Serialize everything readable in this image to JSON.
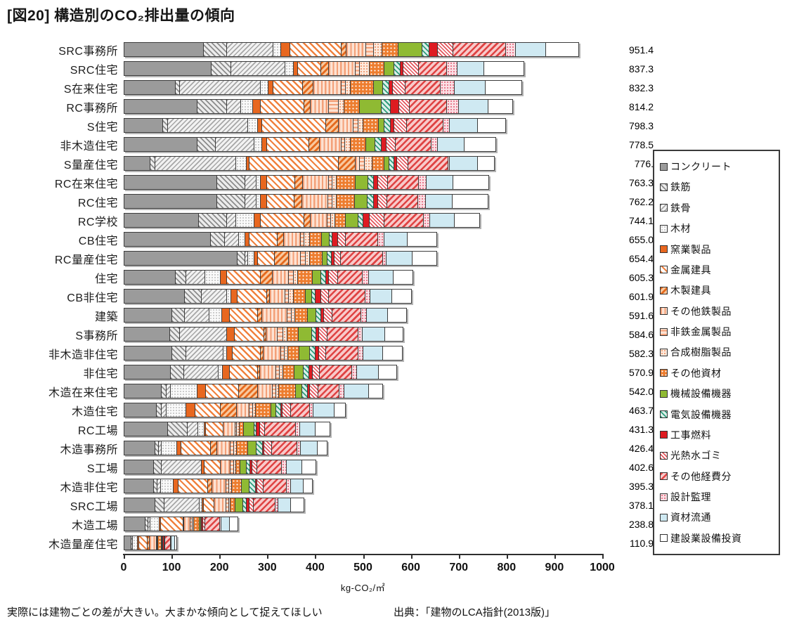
{
  "page": {
    "title": "[図20] 構造別のCO₂排出量の傾向",
    "footer_note": "実際には建物ごとの差が大きい。大まかな傾向として捉えてほしい",
    "source": "出典：「建物のLCA指針(2013版)」"
  },
  "chart_data": {
    "type": "bar",
    "stacked": true,
    "orientation": "horizontal",
    "title": "[図20] 構造別のCO₂排出量の傾向",
    "xlabel": "kg-CO₂/㎡",
    "xlim": [
      0,
      1000
    ],
    "xticks": [
      0,
      100,
      200,
      300,
      400,
      500,
      600,
      700,
      800,
      900,
      1000
    ],
    "grid": false,
    "legend_position": "right",
    "series": [
      {
        "name": "コンクリート",
        "pattern": "solid",
        "color": "#9b9b9b"
      },
      {
        "name": "鉄筋",
        "pattern": "hatch-backslash",
        "color": "#8c8c8c"
      },
      {
        "name": "鉄骨",
        "pattern": "hatch-slash",
        "color": "#a6a6a6"
      },
      {
        "name": "木材",
        "pattern": "dots",
        "color": "#bdbdbd"
      },
      {
        "name": "窯業製品",
        "pattern": "solid",
        "color": "#e8671f"
      },
      {
        "name": "金属建具",
        "pattern": "hatch-backslash",
        "color": "#f0813e"
      },
      {
        "name": "木製建具",
        "pattern": "hatch-slash",
        "color": "#e56a1e"
      },
      {
        "name": "その他鉄製品",
        "pattern": "vertical-stripes",
        "color": "#f4a078"
      },
      {
        "name": "非鉄金属製品",
        "pattern": "horizontal-stripes",
        "color": "#f4a078"
      },
      {
        "name": "合成樹脂製品",
        "pattern": "dots",
        "color": "#f0956a"
      },
      {
        "name": "その他資材",
        "pattern": "white-dots",
        "color": "#ed7d2f"
      },
      {
        "name": "機械設備機器",
        "pattern": "solid",
        "color": "#8fba33"
      },
      {
        "name": "電気設備機器",
        "pattern": "hatch-backslash",
        "color": "#2f9e7d"
      },
      {
        "name": "工事燃料",
        "pattern": "solid",
        "color": "#de1b21"
      },
      {
        "name": "光熱水ゴミ",
        "pattern": "hatch-fine",
        "color": "#e4555c"
      },
      {
        "name": "その他経費分",
        "pattern": "hatch-slash",
        "color": "#df4343"
      },
      {
        "name": "設計監理",
        "pattern": "dots",
        "color": "#e4697e"
      },
      {
        "name": "資材流通",
        "pattern": "solid",
        "color": "#cfe9f2"
      },
      {
        "name": "建設業設備投資",
        "pattern": "solid",
        "color": "#ffffff"
      }
    ],
    "rows": [
      {
        "category": "SRC事務所",
        "total_label": "951.4",
        "values": [
          166,
          49,
          98,
          15,
          20,
          107,
          10,
          42,
          16,
          17,
          35,
          49,
          16,
          17,
          32,
          111,
          20,
          64,
          67.4
        ]
      },
      {
        "category": "SRC住宅",
        "total_label": "837.3",
        "values": [
          182,
          42,
          114,
          17,
          9,
          49,
          16,
          56,
          9,
          20,
          32,
          20,
          13,
          6,
          33,
          58,
          23,
          55,
          83.3
        ]
      },
      {
        "category": "S在来住宅",
        "total_label": "832.3",
        "values": [
          107,
          10,
          169,
          16,
          10,
          62,
          23,
          58,
          10,
          10,
          49,
          19,
          13,
          7,
          26,
          75,
          29,
          65,
          74.3
        ]
      },
      {
        "category": "RC事務所",
        "total_label": "814.2",
        "values": [
          153,
          62,
          29,
          26,
          16,
          91,
          13,
          39,
          20,
          13,
          32,
          46,
          19,
          17,
          22,
          78,
          26,
          62,
          50.2
        ]
      },
      {
        "category": "S住宅",
        "total_label": "798.3",
        "values": [
          81,
          10,
          169,
          20,
          9,
          134,
          26,
          32,
          10,
          10,
          32,
          13,
          13,
          7,
          26,
          78,
          13,
          58,
          57.3
        ]
      },
      {
        "category": "非木造住宅",
        "total_label": "778.5",
        "values": [
          153,
          39,
          81,
          16,
          11,
          87,
          23,
          45,
          8,
          12,
          32,
          20,
          13,
          10,
          19,
          75,
          13,
          57,
          64.5
        ]
      },
      {
        "category": "S量産住宅",
        "total_label": "776.",
        "values": [
          55,
          10,
          169,
          23,
          6,
          186,
          36,
          9,
          10,
          16,
          26,
          10,
          10,
          6,
          23,
          85,
          3,
          58,
          35
        ]
      },
      {
        "category": "RC在来住宅",
        "total_label": "763.3",
        "values": [
          195,
          59,
          23,
          9,
          13,
          59,
          16,
          55,
          8,
          9,
          39,
          26,
          13,
          9,
          20,
          65,
          16,
          56,
          73.3
        ]
      },
      {
        "category": "RC住宅",
        "total_label": "762.2",
        "values": [
          195,
          59,
          23,
          9,
          13,
          58,
          16,
          55,
          8,
          9,
          39,
          26,
          13,
          9,
          20,
          65,
          16,
          56,
          73.2
        ]
      },
      {
        "category": "RC学校",
        "total_label": "744.1",
        "values": [
          156,
          59,
          19,
          39,
          13,
          91,
          13,
          36,
          7,
          9,
          23,
          26,
          10,
          13,
          32,
          82,
          13,
          52,
          51.1
        ]
      },
      {
        "category": "CB住宅",
        "total_label": "655.0",
        "values": [
          181,
          30,
          30,
          13,
          9,
          59,
          13,
          36,
          6,
          13,
          25,
          16,
          6,
          11,
          17,
          68,
          13,
          49,
          60
        ]
      },
      {
        "category": "RC量産住宅",
        "total_label": "654.4",
        "values": [
          237,
          17,
          6,
          13,
          7,
          36,
          29,
          26,
          10,
          9,
          26,
          10,
          9,
          6,
          14,
          88,
          7,
          55,
          49.4
        ]
      },
      {
        "category": "住宅",
        "total_label": "605.3",
        "values": [
          107,
          23,
          39,
          33,
          13,
          71,
          26,
          33,
          10,
          9,
          31,
          18,
          10,
          6,
          20,
          52,
          13,
          52,
          39.3
        ]
      },
      {
        "category": "CB非住宅",
        "total_label": "601.9",
        "values": [
          127,
          36,
          52,
          9,
          13,
          62,
          7,
          32,
          8,
          9,
          26,
          13,
          8,
          11,
          16,
          78,
          10,
          46,
          38.9
        ]
      },
      {
        "category": "建築",
        "total_label": "591.6",
        "values": [
          101,
          26,
          52,
          26,
          16,
          59,
          9,
          53,
          9,
          7,
          27,
          18,
          10,
          7,
          17,
          61,
          11,
          44,
          38.6
        ]
      },
      {
        "category": "S事務所",
        "total_label": "584.6",
        "values": [
          96,
          20,
          99,
          0,
          16,
          62,
          5,
          24,
          11,
          9,
          24,
          28,
          9,
          6,
          17,
          65,
          9,
          47,
          37.6
        ]
      },
      {
        "category": "非木造非住宅",
        "total_label": "582.3",
        "values": [
          101,
          29,
          78,
          7,
          13,
          58,
          7,
          36,
          8,
          7,
          24,
          22,
          12,
          7,
          15,
          67,
          11,
          41,
          39.3
        ]
      },
      {
        "category": "非住宅",
        "total_label": "570.9",
        "values": [
          98,
          27,
          73,
          9,
          14,
          59,
          5,
          34,
          8,
          7,
          24,
          19,
          11,
          8,
          15,
          67,
          11,
          45,
          36.9
        ]
      },
      {
        "category": "木造在来住宅",
        "total_label": "542.0",
        "values": [
          78,
          10,
          10,
          55,
          19,
          69,
          39,
          31,
          8,
          6,
          36,
          13,
          11,
          5,
          17,
          45,
          11,
          51,
          28
        ]
      },
      {
        "category": "木造住宅",
        "total_label": "463.7",
        "values": [
          68,
          10,
          10,
          42,
          20,
          52,
          35,
          26,
          7,
          7,
          32,
          11,
          9,
          4,
          18,
          39,
          8,
          44,
          21.7
        ]
      },
      {
        "category": "RC工場",
        "total_label": "431.3",
        "values": [
          91,
          42,
          23,
          12,
          4,
          36,
          0,
          25,
          4,
          6,
          9,
          21,
          5,
          8,
          10,
          65,
          9,
          32,
          29.3
        ]
      },
      {
        "category": "木造事務所",
        "total_label": "426.4",
        "values": [
          65,
          8,
          6,
          32,
          9,
          62,
          13,
          29,
          7,
          6,
          23,
          18,
          13,
          3,
          17,
          53,
          7,
          36,
          19.4
        ]
      },
      {
        "category": "S工場",
        "total_label": "402.6",
        "values": [
          62,
          16,
          85,
          0,
          5,
          34,
          0,
          22,
          7,
          4,
          9,
          13,
          8,
          5,
          10,
          52,
          10,
          32,
          28.6
        ]
      },
      {
        "category": "木造非住宅",
        "total_label": "395.3",
        "values": [
          62,
          8,
          7,
          27,
          10,
          62,
          9,
          30,
          6,
          5,
          21,
          17,
          13,
          3,
          13,
          49,
          9,
          26,
          18.3
        ]
      },
      {
        "category": "SRC工場",
        "total_label": "378.1",
        "values": [
          65,
          20,
          74,
          5,
          4,
          21,
          0,
          26,
          5,
          4,
          10,
          16,
          7,
          7,
          9,
          46,
          6,
          26,
          27.1
        ]
      },
      {
        "category": "木造工場",
        "total_label": "238.8",
        "values": [
          44,
          7,
          4,
          19,
          4,
          47,
          2,
          13,
          5,
          2,
          12,
          3,
          2,
          2,
          5,
          32,
          3,
          17,
          15.8
        ]
      },
      {
        "category": "木造量産住宅",
        "total_label": "110.9",
        "values": [
          15,
          4,
          0,
          11,
          3,
          18,
          4,
          16,
          2,
          1,
          8,
          1,
          1,
          3,
          1,
          12,
          1,
          8,
          1.9
        ]
      }
    ]
  }
}
